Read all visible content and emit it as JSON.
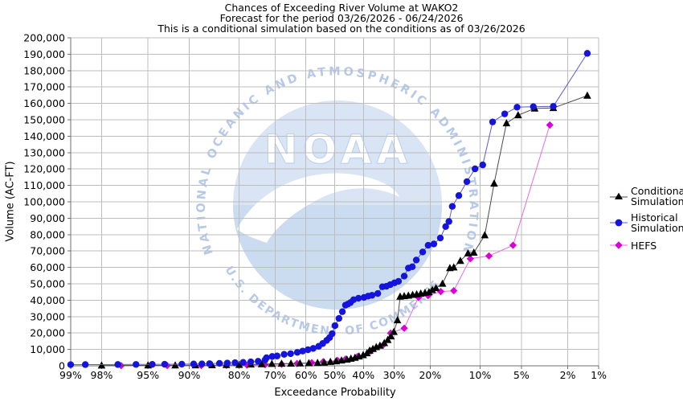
{
  "title_lines": [
    "Chances of Exceeding River Volume at WAKO2",
    "Forecast for the period 03/26/2026 - 06/24/2026",
    "This is a conditional simulation based on the conditions as of 03/26/2026"
  ],
  "watermark": {
    "top_arc_text": "NATIONAL OCEANIC AND ATMOSPHERIC ADMINISTRATION",
    "center_text": "NOAA",
    "bottom_arc_text": "U.S. DEPARTMENT OF COMMERCE"
  },
  "legend": {
    "items": [
      {
        "label": "Conditional\nSimulation",
        "marker": "triangle"
      },
      {
        "label": "Historical\nSimulation",
        "marker": "circle"
      },
      {
        "label": "HEFS",
        "marker": "diamond"
      }
    ]
  },
  "colors": {
    "grid": "#bdbdbd",
    "axis": "#6e6e6e",
    "watermark_fill": "#d9e4f4",
    "watermark_lower": "#cbdbf0",
    "watermark_text": "#b7c9e8"
  },
  "chart_data": {
    "type": "line",
    "title": "Chances of Exceeding River Volume at WAKO2",
    "xlabel": "Exceedance Probability",
    "ylabel": "Volume (AC-FT)",
    "x_scale": "probit",
    "grid": true,
    "legend_position": "right",
    "x_ticks": [
      {
        "p": 99,
        "label": "99%"
      },
      {
        "p": 98,
        "label": "98%"
      },
      {
        "p": 95,
        "label": "95%"
      },
      {
        "p": 90,
        "label": "90%"
      },
      {
        "p": 80,
        "label": "80%"
      },
      {
        "p": 70,
        "label": "70%"
      },
      {
        "p": 60,
        "label": "60%"
      },
      {
        "p": 50,
        "label": "50%"
      },
      {
        "p": 40,
        "label": "40%"
      },
      {
        "p": 30,
        "label": "30%"
      },
      {
        "p": 20,
        "label": "20%"
      },
      {
        "p": 10,
        "label": "10%"
      },
      {
        "p": 5,
        "label": "5%"
      },
      {
        "p": 2,
        "label": "2%"
      },
      {
        "p": 1,
        "label": "1%"
      }
    ],
    "y_axis": {
      "min": 0,
      "max": 200000,
      "tick_step": 10000
    },
    "y_ticks": [
      {
        "v": 0,
        "label": "0"
      },
      {
        "v": 10000,
        "label": "10,000"
      },
      {
        "v": 20000,
        "label": "20,000"
      },
      {
        "v": 30000,
        "label": "30,000"
      },
      {
        "v": 40000,
        "label": "40,000"
      },
      {
        "v": 50000,
        "label": "50,000"
      },
      {
        "v": 60000,
        "label": "60,000"
      },
      {
        "v": 70000,
        "label": "70,000"
      },
      {
        "v": 80000,
        "label": "80,000"
      },
      {
        "v": 90000,
        "label": "90,000"
      },
      {
        "v": 100000,
        "label": "100,000"
      },
      {
        "v": 110000,
        "label": "110,000"
      },
      {
        "v": 120000,
        "label": "120,000"
      },
      {
        "v": 130000,
        "label": "130,000"
      },
      {
        "v": 140000,
        "label": "140,000"
      },
      {
        "v": 150000,
        "label": "150,000"
      },
      {
        "v": 160000,
        "label": "160,000"
      },
      {
        "v": 170000,
        "label": "170,000"
      },
      {
        "v": 180000,
        "label": "180,000"
      },
      {
        "v": 190000,
        "label": "190,000"
      },
      {
        "v": 200000,
        "label": "200,000"
      }
    ],
    "series": [
      {
        "name": "Conditional Simulation",
        "marker": "triangle",
        "marker_color": "#000000",
        "line_color": "#4a4a4a",
        "points": [
          [
            98,
            200
          ],
          [
            95,
            250
          ],
          [
            92,
            300
          ],
          [
            89,
            350
          ],
          [
            86,
            400
          ],
          [
            83,
            500
          ],
          [
            80,
            600
          ],
          [
            77,
            800
          ],
          [
            74,
            1000
          ],
          [
            71,
            1200
          ],
          [
            68,
            1300
          ],
          [
            65,
            1400
          ],
          [
            62,
            1500
          ],
          [
            59,
            1600
          ],
          [
            56,
            1800
          ],
          [
            53.7,
            2000
          ],
          [
            51.5,
            2400
          ],
          [
            49.5,
            2800
          ],
          [
            47.6,
            3300
          ],
          [
            45.7,
            3800
          ],
          [
            44.3,
            4400
          ],
          [
            42.9,
            4900
          ],
          [
            41.5,
            5700
          ],
          [
            40.1,
            6500
          ],
          [
            38.8,
            7700
          ],
          [
            37.9,
            9300
          ],
          [
            36.8,
            10300
          ],
          [
            35.7,
            11400
          ],
          [
            34.5,
            12300
          ],
          [
            33.1,
            13900
          ],
          [
            32,
            15800
          ],
          [
            31,
            18000
          ],
          [
            30.1,
            20700
          ],
          [
            29,
            27800
          ],
          [
            28.2,
            42200
          ],
          [
            27,
            42500
          ],
          [
            25.8,
            42800
          ],
          [
            24.6,
            43300
          ],
          [
            23.5,
            43600
          ],
          [
            22.4,
            44100
          ],
          [
            21.3,
            44500
          ],
          [
            20.3,
            44900
          ],
          [
            19.5,
            46200
          ],
          [
            18.6,
            47400
          ],
          [
            17.1,
            50100
          ],
          [
            15.5,
            59600
          ],
          [
            14.7,
            60000
          ],
          [
            13.4,
            64000
          ],
          [
            12,
            68600
          ],
          [
            11,
            69000
          ],
          [
            9.3,
            79600
          ],
          [
            8,
            111100
          ],
          [
            6.5,
            147900
          ],
          [
            5.3,
            152800
          ],
          [
            3.9,
            156900
          ],
          [
            2.7,
            157200
          ],
          [
            1.3,
            164700
          ]
        ]
      },
      {
        "name": "Historical Simulation",
        "marker": "circle",
        "marker_color": "#1414dd",
        "line_color": "#5a5acd",
        "points": [
          [
            99,
            700
          ],
          [
            98.6,
            750
          ],
          [
            97.2,
            800
          ],
          [
            96,
            850
          ],
          [
            94.6,
            900
          ],
          [
            93.3,
            950
          ],
          [
            91.1,
            1000
          ],
          [
            89.3,
            1100
          ],
          [
            87.9,
            1200
          ],
          [
            86.5,
            1300
          ],
          [
            84.5,
            1500
          ],
          [
            82.8,
            1700
          ],
          [
            81,
            1900
          ],
          [
            79,
            2100
          ],
          [
            77,
            2400
          ],
          [
            75,
            2800
          ],
          [
            73,
            3600
          ],
          [
            72.6,
            4900
          ],
          [
            70.9,
            5700
          ],
          [
            69.4,
            6000
          ],
          [
            67.2,
            7000
          ],
          [
            65.1,
            7400
          ],
          [
            62.9,
            8200
          ],
          [
            61.1,
            9000
          ],
          [
            59.3,
            9800
          ],
          [
            57.5,
            10600
          ],
          [
            55.6,
            11900
          ],
          [
            54.2,
            13600
          ],
          [
            52.8,
            15500
          ],
          [
            51.8,
            17200
          ],
          [
            50.9,
            19600
          ],
          [
            49.9,
            24500
          ],
          [
            48.5,
            28900
          ],
          [
            47.3,
            33000
          ],
          [
            46.2,
            37000
          ],
          [
            45.4,
            37600
          ],
          [
            44.5,
            38500
          ],
          [
            43.4,
            40300
          ],
          [
            41.7,
            41200
          ],
          [
            39.8,
            41700
          ],
          [
            38.4,
            42500
          ],
          [
            37.1,
            43000
          ],
          [
            35.2,
            44100
          ],
          [
            33.7,
            48200
          ],
          [
            32.4,
            48500
          ],
          [
            31.2,
            49500
          ],
          [
            29.9,
            50600
          ],
          [
            28.7,
            51500
          ],
          [
            27,
            54700
          ],
          [
            25.8,
            59600
          ],
          [
            24.7,
            60400
          ],
          [
            23.6,
            64500
          ],
          [
            21.9,
            69400
          ],
          [
            20.5,
            73500
          ],
          [
            19.1,
            74300
          ],
          [
            17.6,
            77900
          ],
          [
            16.4,
            84900
          ],
          [
            15.7,
            88000
          ],
          [
            15,
            97200
          ],
          [
            13.7,
            103800
          ],
          [
            12.2,
            112300
          ],
          [
            10.8,
            120100
          ],
          [
            9.6,
            122500
          ],
          [
            8.2,
            148700
          ],
          [
            6.7,
            153600
          ],
          [
            5.4,
            157700
          ],
          [
            4,
            158000
          ],
          [
            2.7,
            158200
          ],
          [
            1.3,
            190500
          ]
        ]
      },
      {
        "name": "HEFS",
        "marker": "diamond",
        "marker_color": "#d900d9",
        "line_color": "#e06ee0",
        "points": [
          [
            97,
            100
          ],
          [
            93,
            150
          ],
          [
            88,
            200
          ],
          [
            83,
            300
          ],
          [
            78,
            450
          ],
          [
            73,
            700
          ],
          [
            68,
            1000
          ],
          [
            63,
            1400
          ],
          [
            58,
            1900
          ],
          [
            54,
            2500
          ],
          [
            49,
            3300
          ],
          [
            46.2,
            4100
          ],
          [
            42,
            5700
          ],
          [
            37.5,
            9000
          ],
          [
            33.5,
            12600
          ],
          [
            31.1,
            19900
          ],
          [
            27,
            22900
          ],
          [
            23,
            41700
          ],
          [
            20.5,
            42800
          ],
          [
            17.5,
            45300
          ],
          [
            14.7,
            45800
          ],
          [
            11.6,
            65300
          ],
          [
            8.7,
            67000
          ],
          [
            5.8,
            73500
          ],
          [
            2.9,
            146800
          ]
        ]
      }
    ]
  }
}
